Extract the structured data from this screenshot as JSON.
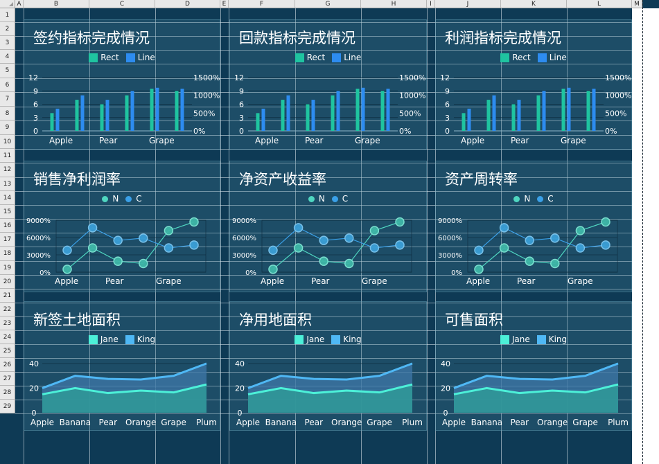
{
  "sheet": {
    "columns": [
      "A",
      "B",
      "C",
      "D",
      "E",
      "F",
      "G",
      "H",
      "I",
      "J",
      "K",
      "L",
      "M"
    ],
    "rows": [
      "1",
      "2",
      "3",
      "4",
      "5",
      "6",
      "7",
      "8",
      "9",
      "10",
      "11",
      "12",
      "13",
      "14",
      "15",
      "16",
      "17",
      "18",
      "19",
      "20",
      "21",
      "22",
      "23",
      "24",
      "25",
      "26",
      "27",
      "28",
      "29"
    ],
    "background_color": "#0e3a55"
  },
  "panels": [
    {
      "title": "签约指标完成情况",
      "legend": [
        "Rect",
        "Line"
      ],
      "kind": "bar"
    },
    {
      "title": "回款指标完成情况",
      "legend": [
        "Rect",
        "Line"
      ],
      "kind": "bar"
    },
    {
      "title": "利润指标完成情况",
      "legend": [
        "Rect",
        "Line"
      ],
      "kind": "bar"
    },
    {
      "title": "销售净利润率",
      "legend": [
        "N",
        "C"
      ],
      "kind": "line"
    },
    {
      "title": "净资产收益率",
      "legend": [
        "N",
        "C"
      ],
      "kind": "line"
    },
    {
      "title": "资产周转率",
      "legend": [
        "N",
        "C"
      ],
      "kind": "line"
    },
    {
      "title": "新签土地面积",
      "legend": [
        "Jane",
        "King"
      ],
      "kind": "area"
    },
    {
      "title": "净用地面积",
      "legend": [
        "Jane",
        "King"
      ],
      "kind": "area"
    },
    {
      "title": "可售面积",
      "legend": [
        "Jane",
        "King"
      ],
      "kind": "area"
    }
  ],
  "colors": {
    "bar_rect": "#1fc4a0",
    "bar_line": "#2d8cf0",
    "line_n": "#4fd6c0",
    "line_c": "#3aa0e8",
    "area_jane": "#4cf0d8",
    "area_king": "#4fb8f5"
  },
  "chart_data": [
    {
      "type": "bar",
      "categories": [
        "Apple",
        "",
        "Pear",
        "",
        "Grape",
        ""
      ],
      "tick_labels": [
        "Apple",
        "Pear",
        "Grape"
      ],
      "series": [
        {
          "name": "Rect",
          "values": [
            4,
            7,
            6,
            8,
            9.5,
            9
          ]
        },
        {
          "name": "Line",
          "values": [
            5,
            8,
            7,
            9,
            9.7,
            9.5
          ]
        }
      ],
      "left_axis_ticks": [
        "0",
        "3",
        "6",
        "9",
        "12"
      ],
      "right_axis_ticks": [
        "0%",
        "500%",
        "1000%",
        "1500%"
      ],
      "ylim": [
        0,
        12
      ]
    },
    {
      "type": "line",
      "categories": [
        "Apple",
        "",
        "Pear",
        "",
        "Grape",
        ""
      ],
      "tick_labels": [
        "Apple",
        "Pear",
        "Grape"
      ],
      "series": [
        {
          "name": "N",
          "values": [
            500,
            4200,
            1900,
            1500,
            7200,
            8700
          ]
        },
        {
          "name": "C",
          "values": [
            3800,
            7700,
            5500,
            5900,
            4200,
            4700
          ]
        }
      ],
      "y_axis_ticks": [
        "0%",
        "3000%",
        "6000%",
        "9000%"
      ],
      "ylim": [
        0,
        9000
      ]
    },
    {
      "type": "area",
      "categories": [
        "Apple",
        "Banana",
        "Pear",
        "Orange",
        "Grape",
        "Plum"
      ],
      "series": [
        {
          "name": "Jane",
          "values": [
            15,
            20,
            16,
            18,
            16.5,
            23
          ]
        },
        {
          "name": "King",
          "values": [
            20,
            30,
            27.5,
            27,
            30,
            40
          ]
        }
      ],
      "y_axis_ticks": [
        "0",
        "20",
        "40"
      ],
      "ylim": [
        0,
        45
      ]
    }
  ]
}
